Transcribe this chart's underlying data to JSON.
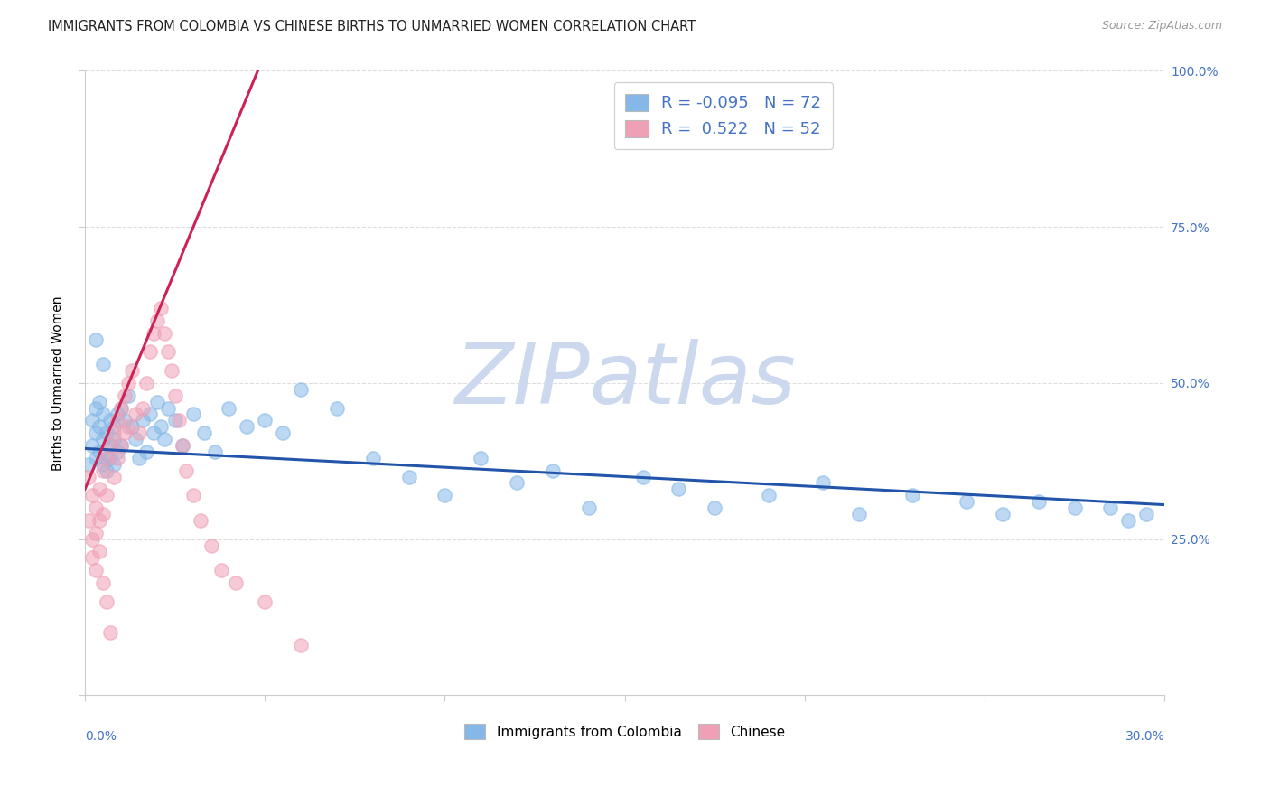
{
  "title": "IMMIGRANTS FROM COLOMBIA VS CHINESE BIRTHS TO UNMARRIED WOMEN CORRELATION CHART",
  "source": "Source: ZipAtlas.com",
  "ylabel": "Births to Unmarried Women",
  "xlim": [
    0.0,
    0.3
  ],
  "ylim": [
    0.0,
    1.0
  ],
  "legend_line1": "R = -0.095   N = 72",
  "legend_line2": "R =  0.522   N = 52",
  "blue_color": "#85b8e8",
  "pink_color": "#f0a0b5",
  "trend_blue_color": "#2255aa",
  "trend_pink_color": "#cc2255",
  "watermark": "ZIPatlas",
  "watermark_blue": "#dde8f5",
  "watermark_atlas": "#c8d8ea",
  "title_fontsize": 10.5,
  "axis_label_fontsize": 10,
  "tick_fontsize": 10,
  "source_fontsize": 9,
  "blue_x": [
    0.001,
    0.002,
    0.002,
    0.003,
    0.003,
    0.003,
    0.004,
    0.004,
    0.004,
    0.005,
    0.005,
    0.005,
    0.006,
    0.006,
    0.006,
    0.007,
    0.007,
    0.007,
    0.008,
    0.008,
    0.008,
    0.009,
    0.009,
    0.01,
    0.01,
    0.011,
    0.012,
    0.013,
    0.014,
    0.015,
    0.016,
    0.017,
    0.018,
    0.019,
    0.02,
    0.021,
    0.022,
    0.023,
    0.025,
    0.027,
    0.03,
    0.033,
    0.036,
    0.04,
    0.045,
    0.05,
    0.055,
    0.06,
    0.07,
    0.08,
    0.09,
    0.1,
    0.11,
    0.12,
    0.13,
    0.14,
    0.155,
    0.165,
    0.175,
    0.19,
    0.205,
    0.215,
    0.23,
    0.245,
    0.255,
    0.265,
    0.275,
    0.285,
    0.29,
    0.295,
    0.003,
    0.005
  ],
  "blue_y": [
    0.37,
    0.4,
    0.44,
    0.38,
    0.42,
    0.46,
    0.39,
    0.43,
    0.47,
    0.37,
    0.41,
    0.45,
    0.38,
    0.42,
    0.36,
    0.4,
    0.44,
    0.38,
    0.37,
    0.41,
    0.43,
    0.39,
    0.45,
    0.4,
    0.46,
    0.44,
    0.48,
    0.43,
    0.41,
    0.38,
    0.44,
    0.39,
    0.45,
    0.42,
    0.47,
    0.43,
    0.41,
    0.46,
    0.44,
    0.4,
    0.45,
    0.42,
    0.39,
    0.46,
    0.43,
    0.44,
    0.42,
    0.49,
    0.46,
    0.38,
    0.35,
    0.32,
    0.38,
    0.34,
    0.36,
    0.3,
    0.35,
    0.33,
    0.3,
    0.32,
    0.34,
    0.29,
    0.32,
    0.31,
    0.29,
    0.31,
    0.3,
    0.3,
    0.28,
    0.29,
    0.57,
    0.53
  ],
  "pink_x": [
    0.001,
    0.001,
    0.002,
    0.002,
    0.002,
    0.003,
    0.003,
    0.003,
    0.004,
    0.004,
    0.004,
    0.005,
    0.005,
    0.005,
    0.006,
    0.006,
    0.006,
    0.007,
    0.007,
    0.008,
    0.008,
    0.009,
    0.009,
    0.01,
    0.01,
    0.011,
    0.011,
    0.012,
    0.012,
    0.013,
    0.014,
    0.015,
    0.016,
    0.017,
    0.018,
    0.019,
    0.02,
    0.021,
    0.022,
    0.023,
    0.024,
    0.025,
    0.026,
    0.027,
    0.028,
    0.03,
    0.032,
    0.035,
    0.038,
    0.042,
    0.05,
    0.06
  ],
  "pink_y": [
    0.35,
    0.28,
    0.32,
    0.25,
    0.22,
    0.3,
    0.26,
    0.2,
    0.33,
    0.28,
    0.23,
    0.36,
    0.29,
    0.18,
    0.38,
    0.32,
    0.15,
    0.4,
    0.1,
    0.42,
    0.35,
    0.44,
    0.38,
    0.46,
    0.4,
    0.48,
    0.42,
    0.5,
    0.43,
    0.52,
    0.45,
    0.42,
    0.46,
    0.5,
    0.55,
    0.58,
    0.6,
    0.62,
    0.58,
    0.55,
    0.52,
    0.48,
    0.44,
    0.4,
    0.36,
    0.32,
    0.28,
    0.24,
    0.2,
    0.18,
    0.15,
    0.08
  ],
  "trend_blue_x0": 0.0,
  "trend_blue_x1": 0.3,
  "trend_blue_y0": 0.395,
  "trend_blue_y1": 0.305,
  "trend_pink_x0": 0.0,
  "trend_pink_x1": 0.048,
  "trend_pink_y0": 0.33,
  "trend_pink_y1": 1.0
}
